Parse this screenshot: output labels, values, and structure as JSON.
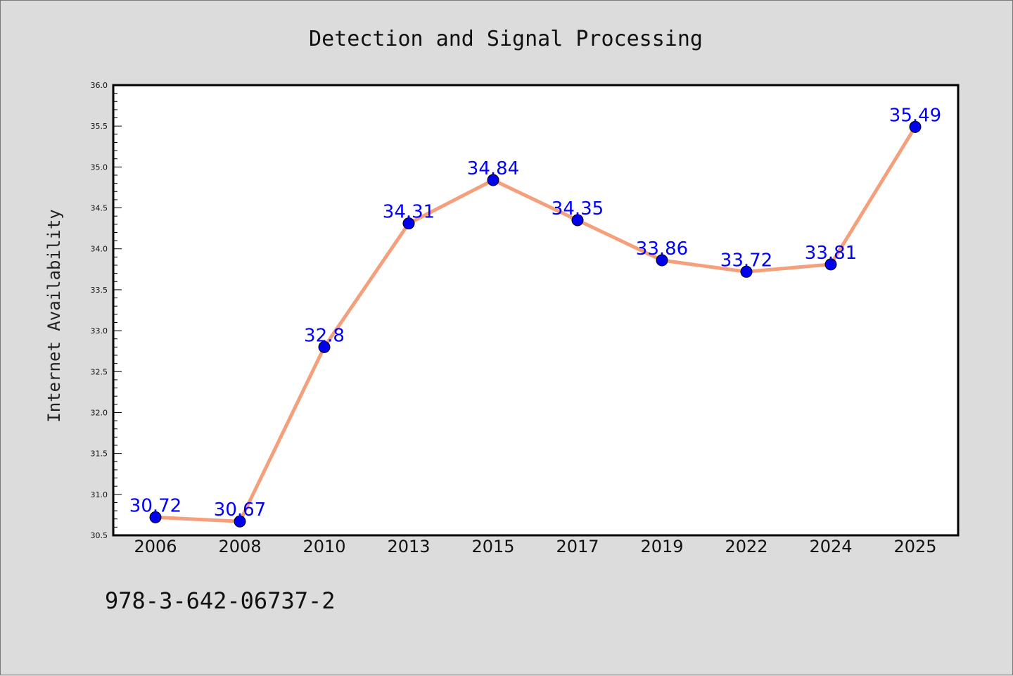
{
  "chart_data": {
    "type": "line",
    "title": "Detection and Signal Processing",
    "xlabel": "",
    "ylabel": "Internet Availability",
    "categories": [
      "2006",
      "2008",
      "2010",
      "2013",
      "2015",
      "2017",
      "2019",
      "2022",
      "2024",
      "2025"
    ],
    "series": [
      {
        "values": [
          30.72,
          30.67,
          32.8,
          34.31,
          34.84,
          34.35,
          33.86,
          33.72,
          33.81,
          35.49
        ],
        "labels": [
          "30.72",
          "30.67",
          "32.8",
          "34.31",
          "34.84",
          "34.35",
          "33.86",
          "33.72",
          "33.81",
          "35.49"
        ],
        "line_color": "#f4a07c",
        "marker_color": "#0000ee"
      }
    ],
    "ylim": [
      30.5,
      36.0
    ],
    "yticks": [
      "30.5",
      "31.0",
      "31.5",
      "32.0",
      "32.5",
      "33.0",
      "33.5",
      "34.0",
      "34.5",
      "35.0",
      "35.5",
      "36.0"
    ],
    "grid": false,
    "data_label_color": "#0000ff"
  },
  "footnote": "978-3-642-06737-2"
}
